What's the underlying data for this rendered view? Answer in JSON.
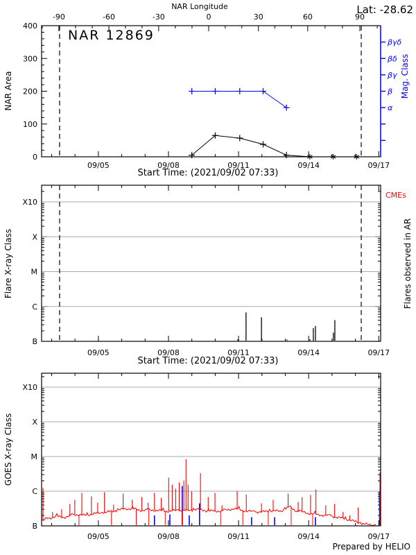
{
  "header": {
    "lat_label": "Lat: -28.62",
    "region_title": "NAR 12869"
  },
  "footer": {
    "credit": "Prepared by HELIO"
  },
  "colors": {
    "accent_blue": "#0000ff",
    "accent_red": "#ff0000",
    "grid_gray": "#a8a8a8",
    "axis_black": "#000000"
  },
  "x_axis": {
    "label": "Start Time: (2021/09/02 07:33)",
    "day_min": 2.57,
    "day_max": 17.08,
    "tick_days": [
      5,
      8,
      11,
      14,
      17
    ],
    "tick_labels": [
      "09/05",
      "09/08",
      "09/11",
      "09/14",
      "09/17"
    ],
    "minor_tick_days": [
      3,
      4,
      6,
      7,
      9,
      10,
      12,
      13,
      15,
      16
    ]
  },
  "longitude_axis": {
    "label": "NAR Longitude",
    "tick_days": [
      3.31,
      5.45,
      7.58,
      9.72,
      11.85,
      13.96,
      16.19
    ],
    "tick_labels": [
      "-90",
      "-60",
      "-30",
      "0",
      "30",
      "60",
      "90"
    ]
  },
  "chart_data": [
    {
      "type": "line",
      "title": "NAR 12869",
      "ylabel_left": "NAR Area",
      "ylabel_right": "Mag. Class",
      "ylim_left": [
        0,
        400
      ],
      "left_tick_values": [
        0,
        100,
        200,
        300,
        400
      ],
      "left_tick_labels": [
        "0",
        "100",
        "200",
        "300",
        "400"
      ],
      "left_minor_step": 20,
      "right_axis": {
        "tick_values": [
          50,
          100,
          150,
          200,
          250,
          300,
          350
        ],
        "tick_labels": [
          "",
          "",
          "α",
          "β",
          "βγ",
          "βδ",
          "βγδ"
        ]
      },
      "dashed_lines_days": [
        3.34,
        16.25
      ],
      "series": [
        {
          "name": "NAR Area",
          "color": "#000000",
          "x_days": [
            9.0,
            10.0,
            11.05,
            12.05,
            13.05,
            14.05,
            15.05,
            16.05
          ],
          "values": [
            5,
            65,
            57,
            38,
            5,
            0,
            0,
            0
          ],
          "markers": [
            "plus",
            "plus",
            "plus",
            "plus",
            "plus",
            "star",
            "star",
            "star"
          ]
        },
        {
          "name": "Mag. Class",
          "color": "#0000ff",
          "x_days": [
            9.0,
            10.0,
            11.05,
            12.05,
            13.05
          ],
          "values": [
            200,
            200,
            200,
            200,
            150
          ],
          "class_labels": [
            "β",
            "β",
            "β",
            "β",
            "α"
          ],
          "markers": [
            "plus",
            "plus",
            "plus",
            "plus",
            "plus"
          ]
        }
      ]
    },
    {
      "type": "impulse",
      "ylabel_left": "Flare X-ray Class",
      "ylabel_right": "Flares observed in AR",
      "corner_label": "CMEs",
      "y_tick_labels": [
        "B",
        "C",
        "M",
        "X",
        "X10"
      ],
      "dashed_lines_days": [
        3.34,
        16.25
      ],
      "flares": [
        {
          "day": 10.97,
          "level": 0.06,
          "class": "B1.1"
        },
        {
          "day": 11.32,
          "level": 0.83,
          "class": "B6.8"
        },
        {
          "day": 11.98,
          "level": 0.69,
          "class": "B4.9"
        },
        {
          "day": 13.07,
          "level": 0.05,
          "class": "B1.1"
        },
        {
          "day": 14.05,
          "level": 0.06,
          "class": "B1.1"
        },
        {
          "day": 14.2,
          "level": 0.38,
          "class": "B2.4"
        },
        {
          "day": 14.29,
          "level": 0.44,
          "class": "B2.8"
        },
        {
          "day": 15.06,
          "level": 0.25,
          "class": "B1.8"
        },
        {
          "day": 15.12,
          "level": 0.61,
          "class": "B4.1"
        }
      ]
    },
    {
      "type": "line",
      "ylabel_left": "GOES X-ray Class",
      "y_tick_labels": [
        "B",
        "C",
        "M",
        "X",
        "X10"
      ],
      "line_color": "#ff0000",
      "base": [
        [
          2.57,
          0.12
        ],
        [
          2.8,
          0.22
        ],
        [
          3.0,
          0.24
        ],
        [
          3.2,
          0.27
        ],
        [
          3.6,
          0.25
        ],
        [
          4.0,
          0.33
        ],
        [
          4.4,
          0.3
        ],
        [
          4.8,
          0.35
        ],
        [
          5.2,
          0.38
        ],
        [
          5.6,
          0.42
        ],
        [
          6.0,
          0.48
        ],
        [
          6.4,
          0.5
        ],
        [
          6.8,
          0.45
        ],
        [
          7.2,
          0.46
        ],
        [
          7.6,
          0.44
        ],
        [
          8.0,
          0.42
        ],
        [
          8.4,
          0.45
        ],
        [
          8.8,
          0.44
        ],
        [
          9.2,
          0.48
        ],
        [
          9.6,
          0.44
        ],
        [
          10.0,
          0.42
        ],
        [
          10.4,
          0.44
        ],
        [
          10.8,
          0.5
        ],
        [
          11.2,
          0.44
        ],
        [
          11.6,
          0.41
        ],
        [
          12.0,
          0.4
        ],
        [
          12.4,
          0.44
        ],
        [
          12.8,
          0.42
        ],
        [
          13.0,
          0.5
        ],
        [
          13.2,
          0.55
        ],
        [
          13.4,
          0.45
        ],
        [
          13.7,
          0.4
        ],
        [
          14.0,
          0.36
        ],
        [
          14.4,
          0.32
        ],
        [
          14.8,
          0.3
        ],
        [
          15.2,
          0.25
        ],
        [
          15.6,
          0.2
        ],
        [
          16.0,
          0.12
        ],
        [
          16.3,
          0.06
        ],
        [
          16.6,
          0.03
        ],
        [
          16.9,
          0.02
        ]
      ],
      "spikes": [
        [
          2.63,
          1.09
        ],
        [
          3.04,
          0.4
        ],
        [
          3.43,
          0.48
        ],
        [
          3.78,
          0.63
        ],
        [
          3.99,
          0.75
        ],
        [
          4.29,
          0.95
        ],
        [
          4.7,
          0.85
        ],
        [
          4.97,
          0.67
        ],
        [
          5.26,
          0.97
        ],
        [
          5.65,
          0.61
        ],
        [
          6.06,
          0.93
        ],
        [
          6.45,
          0.75
        ],
        [
          6.86,
          0.83
        ],
        [
          7.13,
          0.67
        ],
        [
          7.4,
          0.95
        ],
        [
          7.69,
          0.81
        ],
        [
          8.01,
          1.39
        ],
        [
          8.16,
          1.19
        ],
        [
          8.31,
          1.07
        ],
        [
          8.46,
          1.25
        ],
        [
          8.66,
          1.31
        ],
        [
          8.75,
          1.92
        ],
        [
          8.84,
          1.19
        ],
        [
          8.99,
          0.99
        ],
        [
          9.37,
          1.52
        ],
        [
          9.7,
          0.83
        ],
        [
          9.99,
          0.95
        ],
        [
          10.29,
          0.59
        ],
        [
          10.94,
          1.01
        ],
        [
          11.33,
          0.9
        ],
        [
          11.98,
          0.65
        ],
        [
          12.48,
          0.75
        ],
        [
          13.12,
          0.93
        ],
        [
          13.55,
          0.69
        ],
        [
          13.72,
          0.83
        ],
        [
          14.08,
          0.89
        ],
        [
          14.31,
          1.05
        ],
        [
          14.73,
          0.59
        ],
        [
          15.11,
          0.63
        ],
        [
          15.47,
          0.4
        ],
        [
          15.76,
          0.3
        ],
        [
          16.12,
          0.53
        ],
        [
          17.06,
          1.54
        ]
      ],
      "gaps_days": [
        4.17,
        5.56,
        6.62,
        7.16,
        7.86,
        8.58,
        10.23,
        11.18,
        12.27,
        13.25,
        14.17
      ],
      "event_markers": {
        "color": "#0000ff",
        "points": [
          [
            7.4,
            0.3
          ],
          [
            8.06,
            0.33
          ],
          [
            8.59,
            1.15
          ],
          [
            8.89,
            0.3
          ],
          [
            9.33,
            0.65
          ],
          [
            11.56,
            0.25
          ],
          [
            12.54,
            0.25
          ],
          [
            14.29,
            0.25
          ],
          [
            17.06,
            1.0
          ]
        ]
      }
    }
  ]
}
